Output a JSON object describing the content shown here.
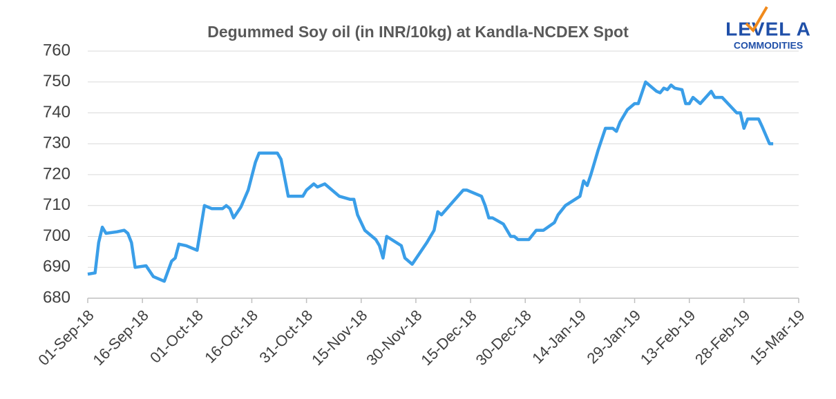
{
  "logo": {
    "name": "LEVEL A",
    "tagline": "COMMODITIES"
  },
  "chart_data": {
    "type": "line",
    "title": "Degummed Soy oil (in INR/10kg) at Kandla-NCDEX Spot",
    "x": [
      "2018-09-01",
      "2018-09-03",
      "2018-09-04",
      "2018-09-05",
      "2018-09-06",
      "2018-09-09",
      "2018-09-11",
      "2018-09-12",
      "2018-09-13",
      "2018-09-14",
      "2018-09-17",
      "2018-09-19",
      "2018-09-22",
      "2018-09-24",
      "2018-09-25",
      "2018-09-26",
      "2018-09-28",
      "2018-10-01",
      "2018-10-03",
      "2018-10-05",
      "2018-10-08",
      "2018-10-09",
      "2018-10-10",
      "2018-10-11",
      "2018-10-13",
      "2018-10-15",
      "2018-10-17",
      "2018-10-18",
      "2018-10-23",
      "2018-10-24",
      "2018-10-25",
      "2018-10-26",
      "2018-10-30",
      "2018-10-31",
      "2018-11-02",
      "2018-11-03",
      "2018-11-05",
      "2018-11-09",
      "2018-11-12",
      "2018-11-13",
      "2018-11-14",
      "2018-11-16",
      "2018-11-19",
      "2018-11-20",
      "2018-11-21",
      "2018-11-22",
      "2018-11-26",
      "2018-11-27",
      "2018-11-29",
      "2018-12-03",
      "2018-12-05",
      "2018-12-06",
      "2018-12-07",
      "2018-12-10",
      "2018-12-13",
      "2018-12-14",
      "2018-12-18",
      "2018-12-19",
      "2018-12-20",
      "2018-12-21",
      "2018-12-24",
      "2018-12-26",
      "2018-12-27",
      "2018-12-28",
      "2018-12-31",
      "2019-01-02",
      "2019-01-04",
      "2019-01-07",
      "2019-01-08",
      "2019-01-10",
      "2019-01-14",
      "2019-01-15",
      "2019-01-16",
      "2019-01-17",
      "2019-01-19",
      "2019-01-21",
      "2019-01-23",
      "2019-01-24",
      "2019-01-25",
      "2019-01-27",
      "2019-01-29",
      "2019-01-30",
      "2019-02-01",
      "2019-02-04",
      "2019-02-05",
      "2019-02-06",
      "2019-02-07",
      "2019-02-08",
      "2019-02-09",
      "2019-02-11",
      "2019-02-12",
      "2019-02-13",
      "2019-02-14",
      "2019-02-16",
      "2019-02-19",
      "2019-02-20",
      "2019-02-22",
      "2019-02-26",
      "2019-02-27",
      "2019-02-28",
      "2019-03-01",
      "2019-03-04",
      "2019-03-05",
      "2019-03-07",
      "2019-03-08"
    ],
    "series": [
      {
        "name": "Degummed Soy oil",
        "color": "#3a9ee8",
        "values": [
          687.8,
          688.2,
          698,
          703,
          701,
          701.5,
          702,
          701,
          698,
          690,
          690.5,
          687,
          685.5,
          692,
          693,
          697.5,
          697,
          695.5,
          710,
          709,
          709,
          710,
          709,
          706,
          709.5,
          715,
          724,
          727,
          727,
          725,
          719,
          713,
          713,
          715,
          717,
          716,
          717,
          713,
          712,
          712,
          707,
          702,
          699,
          697,
          693,
          700,
          697,
          693,
          691,
          698,
          702,
          708,
          707,
          711,
          715,
          715,
          713,
          710,
          706,
          706,
          704,
          700,
          700,
          699,
          699,
          702,
          702,
          704.5,
          707,
          710,
          713,
          718,
          716.5,
          720,
          728,
          735,
          735,
          734,
          737,
          741,
          743,
          743,
          750,
          747,
          746.5,
          748,
          747.5,
          749,
          748,
          747.5,
          743,
          743,
          745,
          743,
          747,
          745,
          745,
          740,
          740,
          735,
          738,
          738,
          735.5,
          730,
          730
        ]
      }
    ],
    "xlim": [
      "2018-09-01",
      "2019-03-15"
    ],
    "xticks": [
      {
        "value": "2018-09-01",
        "label": "01-Sep-18"
      },
      {
        "value": "2018-09-16",
        "label": "16-Sep-18"
      },
      {
        "value": "2018-10-01",
        "label": "01-Oct-18"
      },
      {
        "value": "2018-10-16",
        "label": "16-Oct-18"
      },
      {
        "value": "2018-10-31",
        "label": "31-Oct-18"
      },
      {
        "value": "2018-11-15",
        "label": "15-Nov-18"
      },
      {
        "value": "2018-11-30",
        "label": "30-Nov-18"
      },
      {
        "value": "2018-12-15",
        "label": "15-Dec-18"
      },
      {
        "value": "2018-12-30",
        "label": "30-Dec-18"
      },
      {
        "value": "2019-01-14",
        "label": "14-Jan-19"
      },
      {
        "value": "2019-01-29",
        "label": "29-Jan-19"
      },
      {
        "value": "2019-02-13",
        "label": "13-Feb-19"
      },
      {
        "value": "2019-02-28",
        "label": "28-Feb-19"
      },
      {
        "value": "2019-03-15",
        "label": "15-Mar-19"
      }
    ],
    "ylim": [
      680,
      760
    ],
    "yticks": [
      680,
      690,
      700,
      710,
      720,
      730,
      740,
      750,
      760
    ],
    "grid": true
  }
}
